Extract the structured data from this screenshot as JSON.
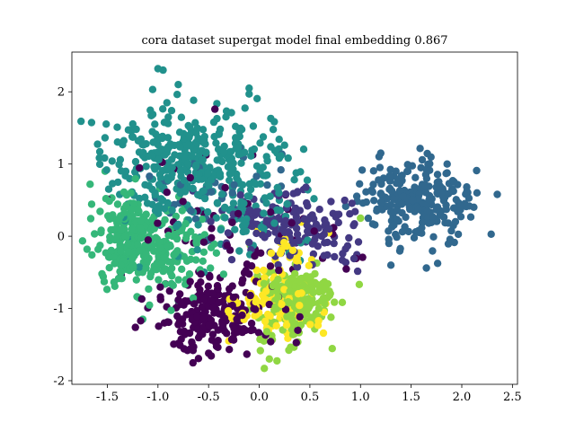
{
  "chart_data": {
    "type": "scatter",
    "title": "cora dataset supergat model final embedding 0.867",
    "xlabel": "",
    "ylabel": "",
    "xlim": [
      -1.85,
      2.55
    ],
    "ylim": [
      -2.05,
      2.55
    ],
    "x_ticks": [
      -1.5,
      -1.0,
      -0.5,
      0.0,
      0.5,
      1.0,
      1.5,
      2.0,
      2.5
    ],
    "x_tick_labels": [
      "-1.5",
      "-1.0",
      "-0.5",
      "0.0",
      "0.5",
      "1.0",
      "1.5",
      "2.0",
      "2.5"
    ],
    "y_ticks": [
      -2,
      -1,
      0,
      1,
      2
    ],
    "y_tick_labels": [
      "-2",
      "-1",
      "0",
      "1",
      "2"
    ],
    "grid": false,
    "legend": false,
    "marker_color_by_class": true,
    "classes": [
      {
        "color": "#440154"
      },
      {
        "color": "#443983"
      },
      {
        "color": "#31688e"
      },
      {
        "color": "#21918c"
      },
      {
        "color": "#35b779"
      },
      {
        "color": "#90d743"
      },
      {
        "color": "#fde725"
      }
    ],
    "clusters": [
      {
        "class": 0,
        "center": [
          -0.45,
          -1.05
        ],
        "spread": [
          0.28,
          0.28
        ],
        "count": 210
      },
      {
        "class": 0,
        "center": [
          -0.55,
          0.25
        ],
        "spread": [
          0.45,
          0.45
        ],
        "count": 40
      },
      {
        "class": 0,
        "center": [
          0.4,
          -0.3
        ],
        "spread": [
          0.3,
          0.25
        ],
        "count": 25
      },
      {
        "class": 1,
        "center": [
          0.45,
          0.05
        ],
        "spread": [
          0.3,
          0.22
        ],
        "count": 130
      },
      {
        "class": 1,
        "center": [
          0.0,
          0.3
        ],
        "spread": [
          0.25,
          0.2
        ],
        "count": 40
      },
      {
        "class": 2,
        "center": [
          1.65,
          0.45
        ],
        "spread": [
          0.25,
          0.28
        ],
        "count": 190
      },
      {
        "class": 2,
        "center": [
          1.3,
          0.6
        ],
        "spread": [
          0.15,
          0.2
        ],
        "count": 45
      },
      {
        "class": 2,
        "center": [
          -0.4,
          0.65
        ],
        "spread": [
          0.35,
          0.3
        ],
        "count": 35
      },
      {
        "class": 3,
        "center": [
          -0.7,
          1.1
        ],
        "spread": [
          0.42,
          0.32
        ],
        "count": 320
      },
      {
        "class": 3,
        "center": [
          -0.2,
          0.45
        ],
        "spread": [
          0.4,
          0.35
        ],
        "count": 100
      },
      {
        "class": 3,
        "center": [
          -1.1,
          0.6
        ],
        "spread": [
          0.3,
          0.3
        ],
        "count": 30
      },
      {
        "class": 4,
        "center": [
          -1.1,
          -0.15
        ],
        "spread": [
          0.3,
          0.3
        ],
        "count": 260
      },
      {
        "class": 4,
        "center": [
          -1.35,
          0.15
        ],
        "spread": [
          0.15,
          0.25
        ],
        "count": 60
      },
      {
        "class": 5,
        "center": [
          0.4,
          -0.85
        ],
        "spread": [
          0.2,
          0.2
        ],
        "count": 180
      },
      {
        "class": 5,
        "center": [
          0.25,
          -1.3
        ],
        "spread": [
          0.15,
          0.2
        ],
        "count": 35
      },
      {
        "class": 6,
        "center": [
          0.15,
          -1.0
        ],
        "spread": [
          0.2,
          0.22
        ],
        "count": 90
      },
      {
        "class": 6,
        "center": [
          0.3,
          -0.25
        ],
        "spread": [
          0.2,
          0.2
        ],
        "count": 30
      }
    ],
    "extra_points": [
      {
        "class": 3,
        "x": -1.0,
        "y": 2.32
      },
      {
        "class": 3,
        "x": -0.95,
        "y": 2.3
      },
      {
        "class": 3,
        "x": -0.8,
        "y": 2.1
      },
      {
        "class": 3,
        "x": -0.1,
        "y": 2.05
      },
      {
        "class": 3,
        "x": -0.1,
        "y": 1.97
      },
      {
        "class": 4,
        "x": -1.67,
        "y": 0.72
      },
      {
        "class": 4,
        "x": -1.7,
        "y": -0.18
      },
      {
        "class": 5,
        "x": 0.05,
        "y": -1.83
      },
      {
        "class": 5,
        "x": 0.1,
        "y": -1.7
      },
      {
        "class": 2,
        "x": 2.35,
        "y": 0.58
      },
      {
        "class": 2,
        "x": 2.15,
        "y": 0.6
      },
      {
        "class": 2,
        "x": 1.2,
        "y": 1.15
      },
      {
        "class": 4,
        "x": -1.15,
        "y": -1.15
      },
      {
        "class": 0,
        "x": -0.5,
        "y": -1.62
      },
      {
        "class": 6,
        "x": -0.3,
        "y": -1.45
      },
      {
        "class": 2,
        "x": 1.3,
        "y": -0.4
      },
      {
        "class": 5,
        "x": 1.0,
        "y": 0.25
      }
    ],
    "seed": 867
  }
}
